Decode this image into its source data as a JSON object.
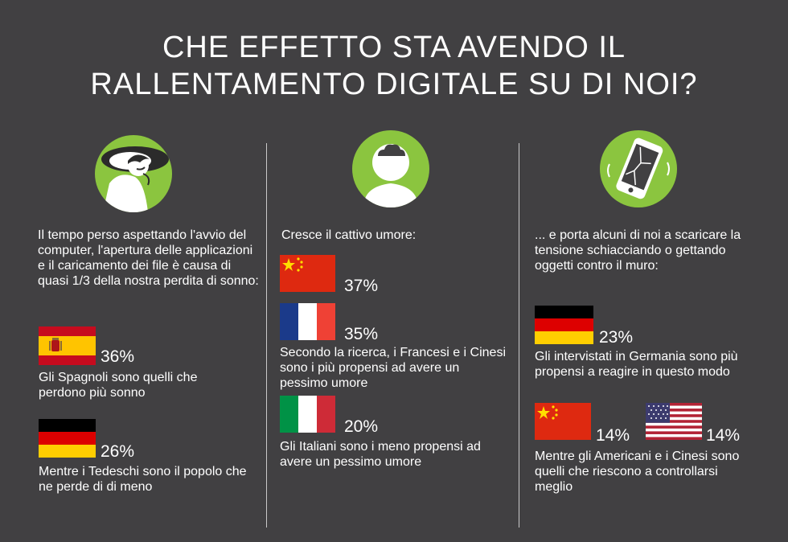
{
  "title": {
    "line1": "CHE EFFETTO STA AVENDO IL",
    "line2": "RALLENTAMENTO DIGITALE  SU DI NOI?"
  },
  "colors": {
    "background": "#414042",
    "accent_green": "#8bc53f",
    "text": "#ffffff"
  },
  "columns": [
    {
      "icon": "sleeping-person-icon",
      "intro": "Il tempo perso aspettando l'avvio del computer, l'apertura delle applicazioni e il caricamento dei file è causa di quasi 1/3 della nostra perdita di sonno:",
      "stats": [
        {
          "flag": "spain-flag",
          "value": "36%",
          "caption": "Gli Spagnoli sono quelli che perdono più sonno"
        },
        {
          "flag": "germany-flag",
          "value": "26%",
          "caption": "Mentre i Tedeschi sono il popolo che ne perde di di meno"
        }
      ]
    },
    {
      "icon": "storm-cloud-person-icon",
      "intro": "Cresce il cattivo umore:",
      "stats": [
        {
          "flag": "china-flag",
          "value": "37%"
        },
        {
          "flag": "france-flag",
          "value": "35%",
          "caption": "Secondo la ricerca, i Francesi e i Cinesi sono i più propensi ad avere un pessimo umore"
        },
        {
          "flag": "italy-flag",
          "value": "20%",
          "caption": "Gli Italiani sono i meno propensi ad avere un pessimo umore"
        }
      ]
    },
    {
      "icon": "broken-phone-icon",
      "intro": "... e porta alcuni di noi a scaricare la tensione schiacciando o gettando oggetti contro il muro:",
      "stats": [
        {
          "flag": "germany-flag",
          "value": "23%",
          "caption": "Gli intervistati in Germania sono più propensi a reagire in questo modo"
        },
        {
          "flag": "china-flag",
          "value": "14%"
        },
        {
          "flag": "usa-flag",
          "value": "14%",
          "caption": "Mentre gli Americani e i Cinesi sono quelli che riescono a controllarsi meglio"
        }
      ]
    }
  ]
}
